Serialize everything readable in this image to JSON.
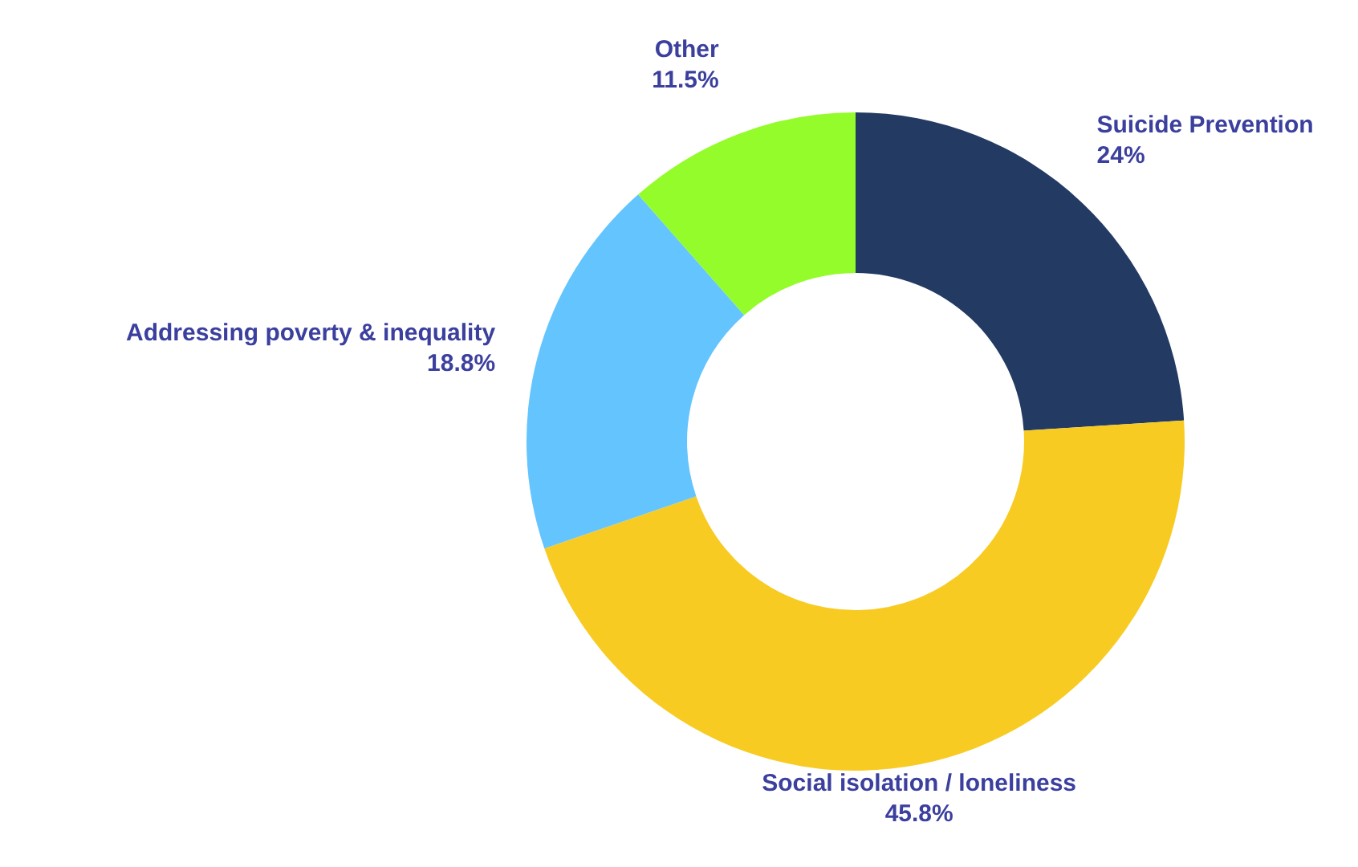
{
  "chart_data": {
    "type": "donut",
    "categories": [
      "Suicide Prevention",
      "Social isolation / loneliness",
      "Addressing poverty & inequality",
      "Other"
    ],
    "values": [
      24,
      45.8,
      18.8,
      11.5
    ],
    "colors": [
      "#233a63",
      "#f8cb23",
      "#63c4fe",
      "#93fc2a"
    ],
    "value_labels": [
      "24%",
      "45.8%",
      "18.8%",
      "11.5%"
    ],
    "legend": false
  }
}
